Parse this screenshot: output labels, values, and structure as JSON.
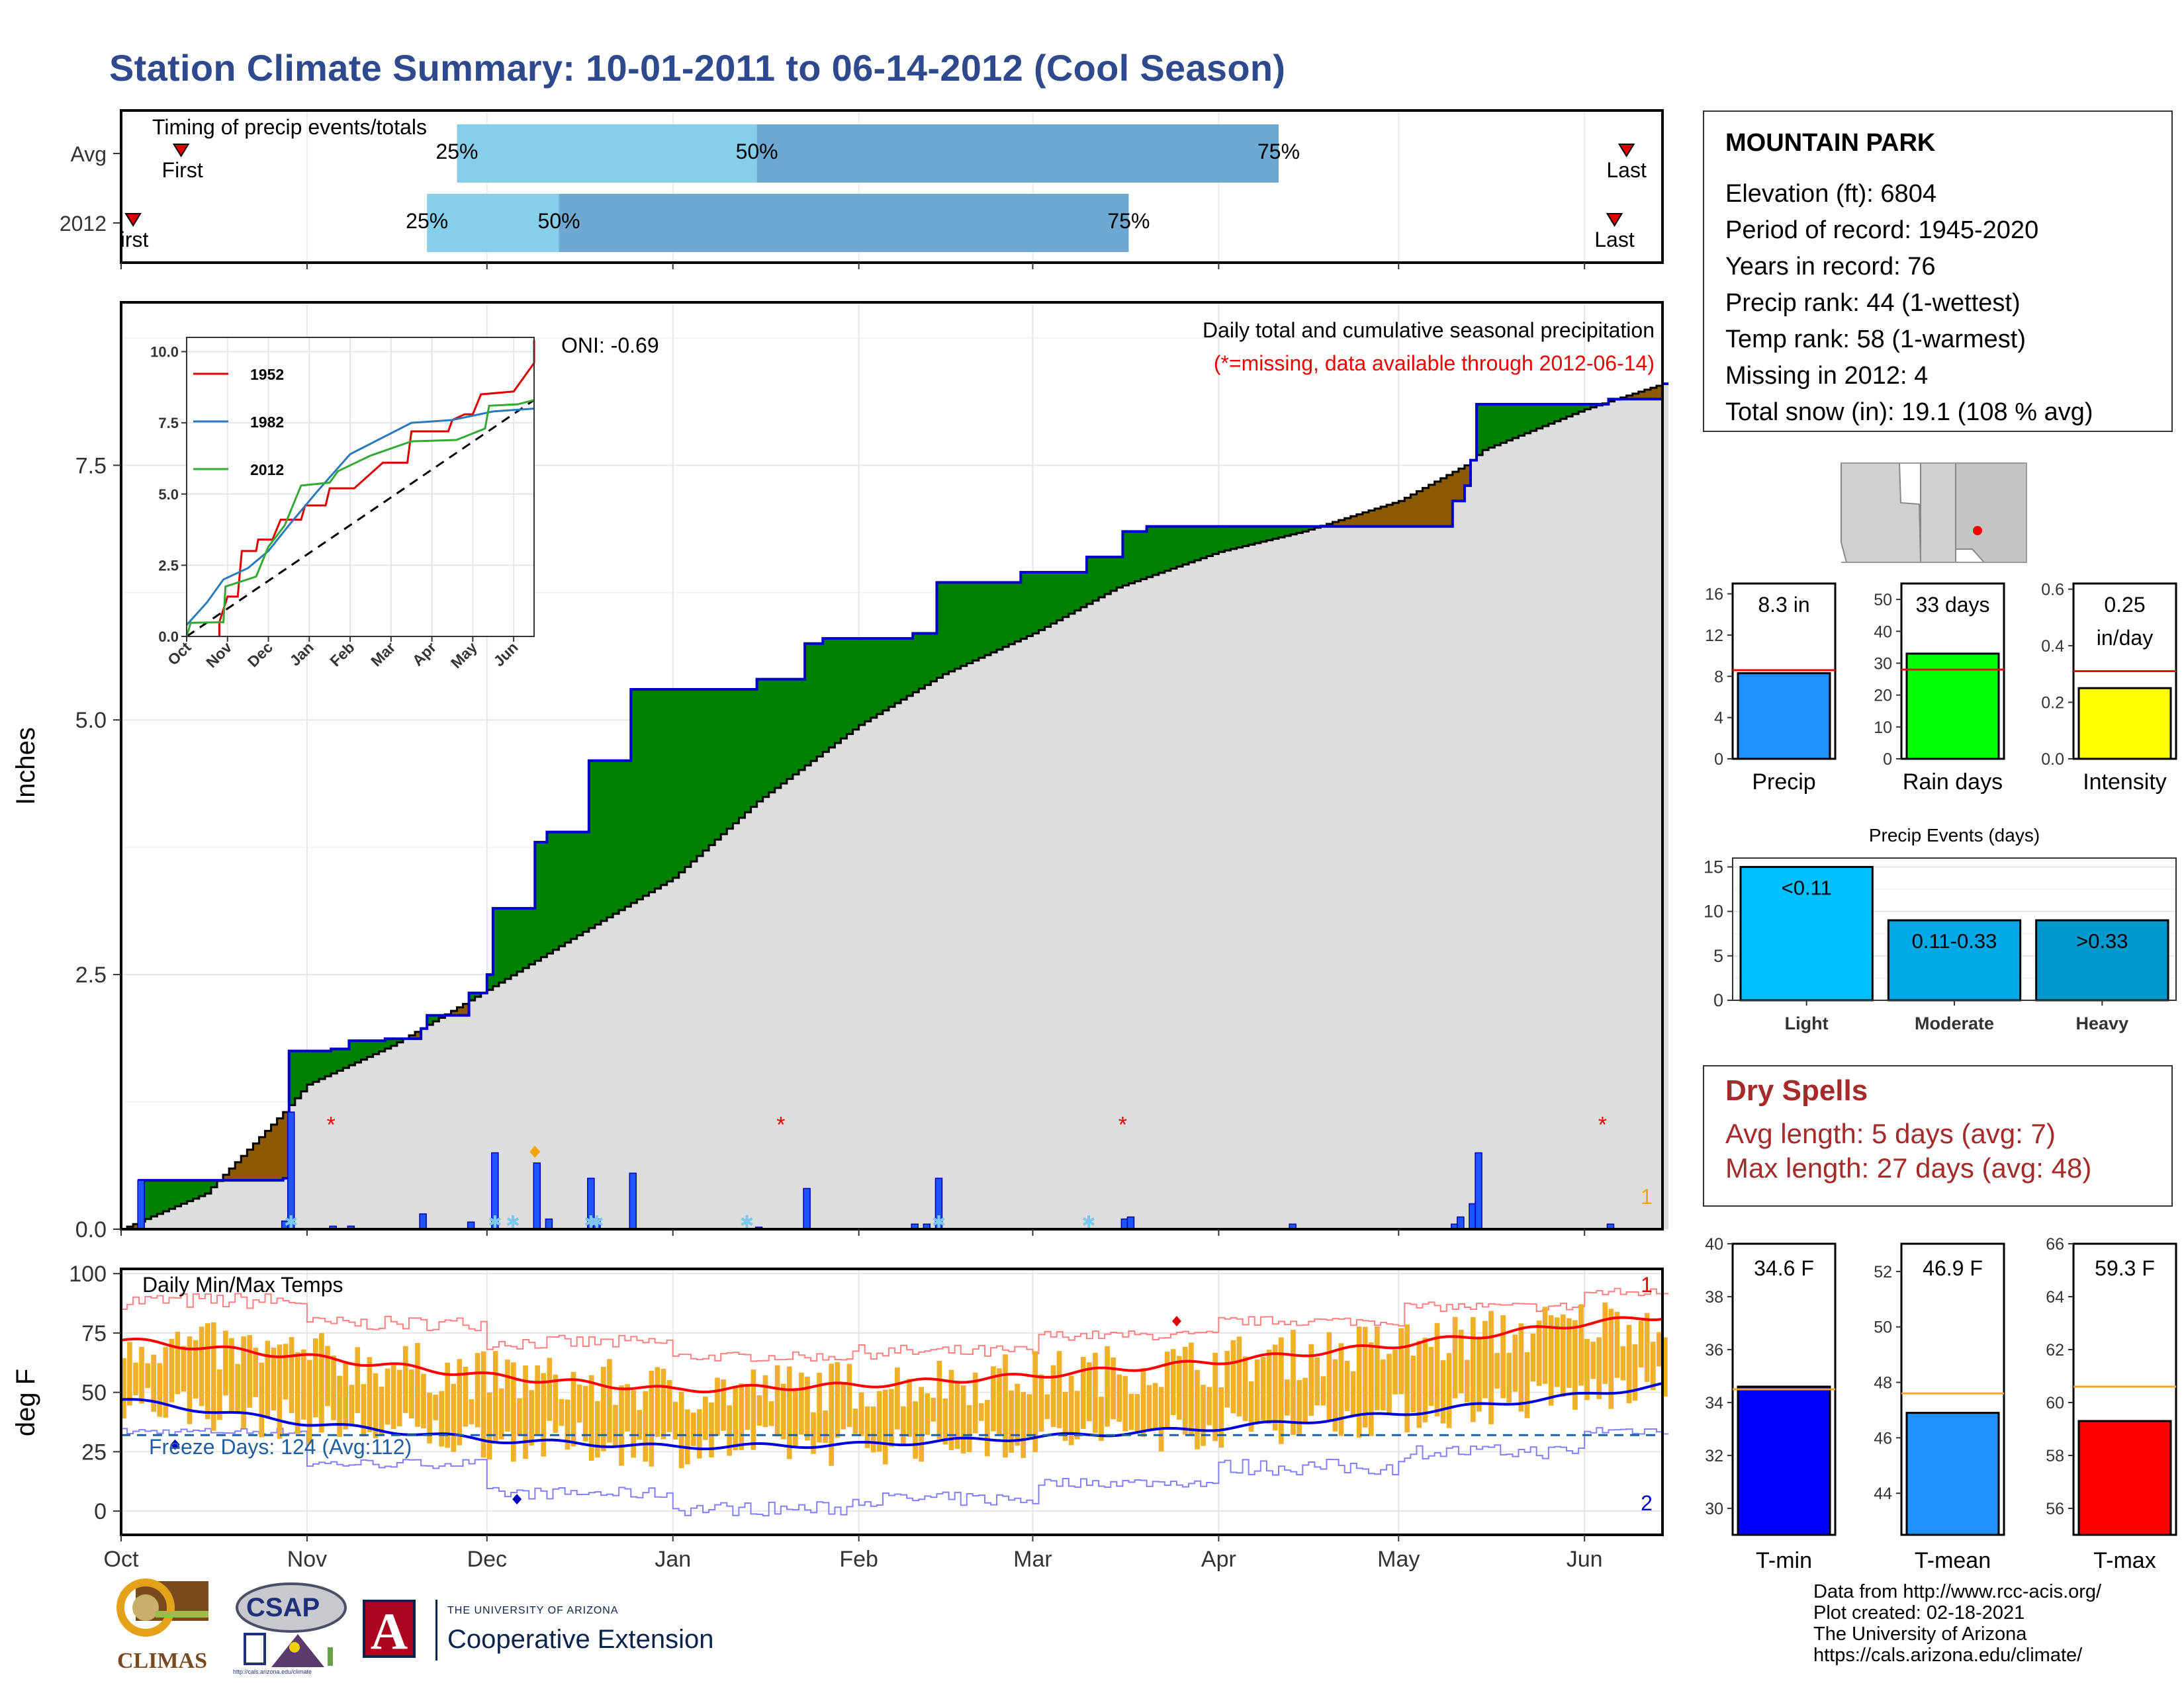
{
  "title": "Station Climate Summary: 10-01-2011 to 06-14-2012 (Cool Season)",
  "colors": {
    "title": "#2e4a8c",
    "q1": "#87ceeb",
    "q2": "#6fa8d0",
    "above": "#008000",
    "below": "#8b5a00",
    "cum": "#0000cc",
    "normal": "#000000",
    "fill": "#dddddd",
    "bar": "#1e55ff",
    "band": "#efb02a",
    "tmax": "#ff0000",
    "tmin": "#0000dd",
    "freeze": "#1f5fa0",
    "precip": "#1e90ff",
    "raindays": "#00ff00",
    "intensity": "#ffff00",
    "light": "#00bfff",
    "moderate": "#00a8e6",
    "heavy": "#0099cc",
    "tminbar": "#0000ff",
    "tmeanbar": "#1e90ff",
    "tmaxbar": "#ff0000",
    "dry": "#a52a2a"
  },
  "timing": {
    "label": "Timing of precip events/totals",
    "rows": [
      {
        "name": "Avg",
        "first_date": "2011-10-11",
        "q25": "2011-11-26",
        "q50": "2012-01-15",
        "q75": "2012-04-11",
        "last_date": "2012-06-08",
        "first_label": "First",
        "last_label": "Last",
        "l25": "25%",
        "l50": "50%",
        "l75": "75%"
      },
      {
        "name": "2012",
        "first_date": "2011-10-03",
        "q25": "2011-11-21",
        "q50": "2011-12-13",
        "q75": "2012-03-17",
        "last_date": "2012-06-06",
        "first_label": "irst",
        "last_label": "Last",
        "l25": "25%",
        "l50": "50%",
        "l75": "75%"
      }
    ]
  },
  "chart_data": [
    {
      "type": "area",
      "name": "precipitation",
      "title": "Daily total and cumulative seasonal precipitation",
      "subtitle": "(*=missing, data available through 2012-06-14)",
      "ylabel": "Inches",
      "xlabel": "",
      "ylim": [
        0,
        9.1
      ],
      "yticks": [
        "0.0",
        "2.5",
        "5.0",
        "7.5"
      ],
      "oni": "ONI: -0.69",
      "corner_label": "1",
      "x_ticks": [
        "Oct",
        "Nov",
        "Dec",
        "Jan",
        "Feb",
        "Mar",
        "Apr",
        "May",
        "Jun"
      ],
      "x_tick_dates": [
        "2011-10-01",
        "2011-11-01",
        "2011-12-01",
        "2012-01-01",
        "2012-02-01",
        "2012-03-01",
        "2012-04-01",
        "2012-05-01",
        "2012-06-01"
      ],
      "cumulative_2012": [
        [
          "2011-10-01",
          0.0
        ],
        [
          "2011-10-03",
          0.0
        ],
        [
          "2011-10-04",
          0.48
        ],
        [
          "2011-10-28",
          0.5
        ],
        [
          "2011-10-29",
          1.75
        ],
        [
          "2011-11-05",
          1.77
        ],
        [
          "2011-11-08",
          1.85
        ],
        [
          "2011-11-14",
          1.87
        ],
        [
          "2011-11-20",
          1.97
        ],
        [
          "2011-11-21",
          2.1
        ],
        [
          "2011-11-28",
          2.32
        ],
        [
          "2011-12-01",
          2.5
        ],
        [
          "2011-12-02",
          3.15
        ],
        [
          "2011-12-09",
          3.8
        ],
        [
          "2011-12-11",
          3.9
        ],
        [
          "2011-12-18",
          4.6
        ],
        [
          "2011-12-25",
          5.3
        ],
        [
          "2012-01-15",
          5.4
        ],
        [
          "2012-01-23",
          5.75
        ],
        [
          "2012-01-26",
          5.8
        ],
        [
          "2012-02-10",
          5.85
        ],
        [
          "2012-02-14",
          6.35
        ],
        [
          "2012-02-28",
          6.45
        ],
        [
          "2012-03-10",
          6.6
        ],
        [
          "2012-03-16",
          6.85
        ],
        [
          "2012-03-20",
          6.9
        ],
        [
          "2012-04-20",
          6.9
        ],
        [
          "2012-05-10",
          7.15
        ],
        [
          "2012-05-12",
          7.3
        ],
        [
          "2012-05-13",
          7.55
        ],
        [
          "2012-05-14",
          8.1
        ],
        [
          "2012-06-05",
          8.15
        ],
        [
          "2012-06-14",
          8.3
        ]
      ],
      "normal_cumulative": [
        [
          "2011-10-01",
          0.0
        ],
        [
          "2011-10-15",
          0.35
        ],
        [
          "2011-10-28",
          1.15
        ],
        [
          "2011-11-01",
          1.42
        ],
        [
          "2011-11-15",
          1.8
        ],
        [
          "2011-12-01",
          2.35
        ],
        [
          "2011-12-15",
          2.85
        ],
        [
          "2012-01-01",
          3.45
        ],
        [
          "2012-01-15",
          4.2
        ],
        [
          "2012-02-01",
          4.95
        ],
        [
          "2012-02-15",
          5.45
        ],
        [
          "2012-03-01",
          5.85
        ],
        [
          "2012-03-15",
          6.3
        ],
        [
          "2012-04-01",
          6.65
        ],
        [
          "2012-04-15",
          6.85
        ],
        [
          "2012-05-01",
          7.15
        ],
        [
          "2012-05-12",
          7.5
        ],
        [
          "2012-05-15",
          7.65
        ],
        [
          "2012-06-01",
          8.05
        ],
        [
          "2012-06-14",
          8.3
        ]
      ],
      "daily_2012": [
        [
          "2011-10-04",
          0.48
        ],
        [
          "2011-10-28",
          0.08
        ],
        [
          "2011-10-29",
          1.15
        ],
        [
          "2011-11-05",
          0.03
        ],
        [
          "2011-11-08",
          0.03
        ],
        [
          "2011-11-20",
          0.15
        ],
        [
          "2011-11-28",
          0.07
        ],
        [
          "2011-12-02",
          0.75
        ],
        [
          "2011-12-09",
          0.65
        ],
        [
          "2011-12-11",
          0.1
        ],
        [
          "2011-12-18",
          0.5
        ],
        [
          "2011-12-19",
          0.1
        ],
        [
          "2011-12-25",
          0.55
        ],
        [
          "2012-01-15",
          0.02
        ],
        [
          "2012-01-23",
          0.4
        ],
        [
          "2012-02-10",
          0.05
        ],
        [
          "2012-02-12",
          0.05
        ],
        [
          "2012-02-14",
          0.5
        ],
        [
          "2012-03-16",
          0.1
        ],
        [
          "2012-03-17",
          0.12
        ],
        [
          "2012-04-13",
          0.05
        ],
        [
          "2012-05-10",
          0.05
        ],
        [
          "2012-05-11",
          0.12
        ],
        [
          "2012-05-13",
          0.25
        ],
        [
          "2012-05-14",
          0.75
        ],
        [
          "2012-06-05",
          0.05
        ]
      ],
      "missing_dates": [
        "2011-11-05",
        "2012-01-19",
        "2012-03-16",
        "2012-06-04"
      ],
      "snow_dates": [
        "2011-10-29",
        "2011-12-02",
        "2011-12-05",
        "2011-12-18",
        "2011-12-19",
        "2012-01-13",
        "2012-02-14",
        "2012-03-10"
      ],
      "inset": {
        "type": "line",
        "ylim": [
          0,
          10.5
        ],
        "yticks": [
          "0.0",
          "2.5",
          "5.0",
          "7.5",
          "10.0"
        ],
        "x_ticks": [
          "Oct",
          "Nov",
          "Dec",
          "Jan",
          "Feb",
          "Mar",
          "Apr",
          "May",
          "Jun"
        ],
        "series": [
          {
            "name": "1952",
            "color": "#dd0000",
            "values": [
              [
                0.8,
                0
              ],
              [
                0.8,
                0.5
              ],
              [
                1,
                1.4
              ],
              [
                1.25,
                1.4
              ],
              [
                1.35,
                3.0
              ],
              [
                1.7,
                3.0
              ],
              [
                1.75,
                3.4
              ],
              [
                2.1,
                3.4
              ],
              [
                2.3,
                4.1
              ],
              [
                2.8,
                4.1
              ],
              [
                2.9,
                4.6
              ],
              [
                3.4,
                4.6
              ],
              [
                3.5,
                5.2
              ],
              [
                4.1,
                5.2
              ],
              [
                4.8,
                6.1
              ],
              [
                5.4,
                6.1
              ],
              [
                5.5,
                7.2
              ],
              [
                6.4,
                7.2
              ],
              [
                6.5,
                7.6
              ],
              [
                6.8,
                7.8
              ],
              [
                7.0,
                7.8
              ],
              [
                7.2,
                8.5
              ],
              [
                8.0,
                8.6
              ],
              [
                8.5,
                9.6
              ],
              [
                8.5,
                10.4
              ]
            ]
          },
          {
            "name": "1982",
            "color": "#2b7bba",
            "values": [
              [
                0,
                0.4
              ],
              [
                0.5,
                1.2
              ],
              [
                0.9,
                2.0
              ],
              [
                1.5,
                2.4
              ],
              [
                2,
                3.0
              ],
              [
                2.5,
                3.9
              ],
              [
                3.2,
                5.1
              ],
              [
                4.0,
                6.4
              ],
              [
                5.5,
                7.5
              ],
              [
                6.5,
                7.6
              ],
              [
                7.5,
                7.9
              ],
              [
                8.5,
                8.0
              ]
            ]
          },
          {
            "name": "2012",
            "color": "#33aa33",
            "values": [
              [
                0,
                0
              ],
              [
                0.1,
                0.48
              ],
              [
                0.9,
                0.5
              ],
              [
                0.95,
                1.75
              ],
              [
                1.7,
                2.1
              ],
              [
                2.0,
                3.15
              ],
              [
                2.4,
                3.9
              ],
              [
                2.6,
                4.6
              ],
              [
                2.8,
                5.3
              ],
              [
                3.5,
                5.4
              ],
              [
                3.7,
                5.8
              ],
              [
                4.5,
                6.35
              ],
              [
                5.5,
                6.85
              ],
              [
                6.6,
                6.9
              ],
              [
                7.3,
                7.3
              ],
              [
                7.4,
                8.1
              ],
              [
                8.1,
                8.15
              ],
              [
                8.5,
                8.3
              ]
            ]
          }
        ],
        "normal": [
          [
            0,
            0
          ],
          [
            8.5,
            8.3
          ]
        ]
      }
    },
    {
      "type": "line",
      "name": "temperature",
      "title": "Daily Min/Max Temps",
      "ylabel": "deg F",
      "ylim": [
        -10,
        102
      ],
      "yticks": [
        "0",
        "25",
        "50",
        "75",
        "100"
      ],
      "freeze_label": "Freeze Days: 124 (Avg:112)",
      "freeze_line": 32,
      "label_top": "1",
      "label_bottom": "2",
      "avg_tmax": [
        [
          "2011-10-01",
          72
        ],
        [
          "2011-11-01",
          65
        ],
        [
          "2011-12-01",
          57
        ],
        [
          "2012-01-01",
          51
        ],
        [
          "2012-02-01",
          53
        ],
        [
          "2012-03-01",
          57
        ],
        [
          "2012-04-01",
          63
        ],
        [
          "2012-05-01",
          70
        ],
        [
          "2012-06-01",
          79
        ],
        [
          "2012-06-14",
          82
        ]
      ],
      "avg_tmin": [
        [
          "2011-10-01",
          47
        ],
        [
          "2011-11-01",
          37
        ],
        [
          "2011-12-01",
          30
        ],
        [
          "2012-01-01",
          27
        ],
        [
          "2012-02-01",
          28
        ],
        [
          "2012-03-01",
          31
        ],
        [
          "2012-04-01",
          35
        ],
        [
          "2012-05-01",
          41
        ],
        [
          "2012-06-01",
          49
        ],
        [
          "2012-06-14",
          53
        ]
      ],
      "record_high_range": [
        [
          85,
          92
        ],
        [
          76,
          82
        ],
        [
          68,
          74
        ],
        [
          63,
          67
        ],
        [
          64,
          70
        ],
        [
          72,
          76
        ],
        [
          78,
          82
        ],
        [
          84,
          88
        ],
        [
          90,
          94
        ]
      ],
      "record_low_range": [
        [
          32,
          35
        ],
        [
          18,
          22
        ],
        [
          5,
          10
        ],
        [
          -2,
          4
        ],
        [
          2,
          8
        ],
        [
          10,
          14
        ],
        [
          15,
          22
        ],
        [
          22,
          28
        ],
        [
          32,
          36
        ]
      ],
      "extremes": {
        "high": [
          "2012-03-25",
          80
        ],
        "low": [
          "2011-12-06",
          5
        ],
        "marker": [
          "2011-10-10",
          28
        ]
      }
    },
    {
      "type": "bar",
      "name": "season-totals",
      "categories": [
        "Precip",
        "Rain days",
        "Intensity"
      ],
      "values": [
        8.3,
        33,
        0.25
      ],
      "averages": [
        8.6,
        28,
        0.31
      ],
      "value_labels": [
        "8.3 in",
        "33 days",
        "0.25\nin/day"
      ],
      "ylims": [
        [
          0,
          17
        ],
        [
          0,
          55
        ],
        [
          0,
          0.62
        ]
      ],
      "yticks": [
        [
          "0",
          "4",
          "8",
          "12",
          "16"
        ],
        [
          "0",
          "10",
          "20",
          "30",
          "40",
          "50"
        ],
        [
          "0.0",
          "0.2",
          "0.4",
          "0.6"
        ]
      ]
    },
    {
      "type": "bar",
      "name": "precip-events",
      "title": "Precip Events (days)",
      "categories": [
        "Light",
        "Moderate",
        "Heavy"
      ],
      "value_labels": [
        "<0.11",
        "0.11-0.33",
        ">0.33"
      ],
      "values": [
        15,
        9,
        9
      ],
      "ylim": [
        0,
        16
      ],
      "yticks": [
        "0",
        "5",
        "10",
        "15"
      ]
    },
    {
      "type": "bar",
      "name": "temp-summary",
      "categories": [
        "T-min",
        "T-mean",
        "T-max"
      ],
      "values": [
        34.6,
        46.9,
        59.3
      ],
      "averages": [
        34.5,
        47.6,
        60.6
      ],
      "value_labels": [
        "34.6 F",
        "46.9 F",
        "59.3 F"
      ],
      "ylims": [
        [
          29,
          40
        ],
        [
          42.5,
          53
        ],
        [
          55,
          66
        ]
      ],
      "yticks": [
        [
          "30",
          "32",
          "34",
          "36",
          "38",
          "40"
        ],
        [
          "44",
          "46",
          "48",
          "50",
          "52"
        ],
        [
          "56",
          "58",
          "60",
          "62",
          "64",
          "66"
        ]
      ]
    }
  ],
  "station": {
    "name": "MOUNTAIN PARK",
    "lines": [
      "Elevation (ft): 6804",
      "Period of record: 1945-2020",
      "Years in record: 76",
      "Precip rank: 44 (1-wettest)",
      "Temp rank: 58 (1-warmest)",
      "Missing in 2012: 4",
      "Total snow (in): 19.1 (108 % avg)"
    ]
  },
  "dry_spells": {
    "title": "Dry Spells",
    "avg": "Avg length: 5 days (avg: 7)",
    "max": "Max length: 27 days (avg: 48)"
  },
  "credits": [
    "Data from http://www.rcc-acis.org/",
    "Plot created: 02-18-2021",
    "The University of Arizona",
    "https://cals.arizona.edu/climate/"
  ],
  "logos": {
    "climas": "CLIMAS",
    "csap": "CSAP",
    "csap_url": "http://cals.arizona.edu/climate",
    "ua_line1": "THE UNIVERSITY OF ARIZONA",
    "ua_line2": "Cooperative Extension",
    "ua_letter": "A"
  }
}
